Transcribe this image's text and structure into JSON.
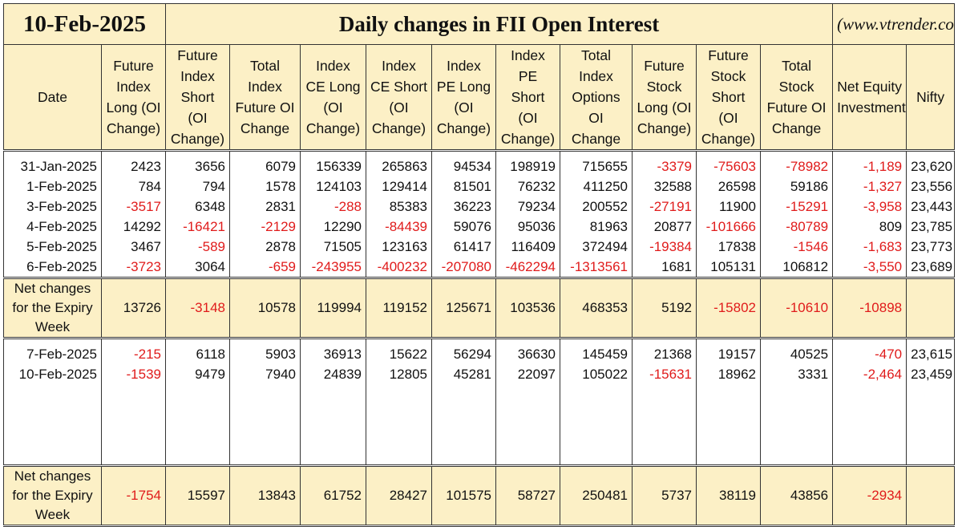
{
  "header": {
    "date": "10-Feb-2025",
    "title": "Daily changes in FII Open Interest",
    "site": "(www.vtrender.com)"
  },
  "columns": [
    "Date",
    "Future Index Long (OI Change)",
    "Future Index Short (OI Change)",
    "Total Index Future OI Change",
    "Index CE Long (OI Change)",
    "Index CE Short (OI Change)",
    "Index PE Long (OI Change)",
    "Index PE Short (OI Change)",
    "Total Index Options OI Change",
    "Future Stock Long (OI Change)",
    "Future Stock Short (OI Change)",
    "Total Stock Future OI Change",
    "Net Equity Investment",
    "Nifty"
  ],
  "week1": [
    [
      "31-Jan-2025",
      "2423",
      "3656",
      "6079",
      "156339",
      "265863",
      "94534",
      "198919",
      "715655",
      "-3379",
      "-75603",
      "-78982",
      "-1,189",
      "23,620"
    ],
    [
      "1-Feb-2025",
      "784",
      "794",
      "1578",
      "124103",
      "129414",
      "81501",
      "76232",
      "411250",
      "32588",
      "26598",
      "59186",
      "-1,327",
      "23,556"
    ],
    [
      "3-Feb-2025",
      "-3517",
      "6348",
      "2831",
      "-288",
      "85383",
      "36223",
      "79234",
      "200552",
      "-27191",
      "11900",
      "-15291",
      "-3,958",
      "23,443"
    ],
    [
      "4-Feb-2025",
      "14292",
      "-16421",
      "-2129",
      "12290",
      "-84439",
      "59076",
      "95036",
      "81963",
      "20877",
      "-101666",
      "-80789",
      "809",
      "23,785"
    ],
    [
      "5-Feb-2025",
      "3467",
      "-589",
      "2878",
      "71505",
      "123163",
      "61417",
      "116409",
      "372494",
      "-19384",
      "17838",
      "-1546",
      "-1,683",
      "23,773"
    ],
    [
      "6-Feb-2025",
      "-3723",
      "3064",
      "-659",
      "-243955",
      "-400232",
      "-207080",
      "-462294",
      "-1313561",
      "1681",
      "105131",
      "106812",
      "-3,550",
      "23,689"
    ]
  ],
  "net1": {
    "label": "Net changes for the Expiry Week",
    "values": [
      "13726",
      "-3148",
      "10578",
      "119994",
      "119152",
      "125671",
      "103536",
      "468353",
      "5192",
      "-15802",
      "-10610",
      "-10898",
      ""
    ]
  },
  "week2": [
    [
      "7-Feb-2025",
      "-215",
      "6118",
      "5903",
      "36913",
      "15622",
      "56294",
      "36630",
      "145459",
      "21368",
      "19157",
      "40525",
      "-470",
      "23,615"
    ],
    [
      "10-Feb-2025",
      "-1539",
      "9479",
      "7940",
      "24839",
      "12805",
      "45281",
      "22097",
      "105022",
      "-15631",
      "18962",
      "3331",
      "-2,464",
      "23,459"
    ]
  ],
  "net2": {
    "label": "Net changes for the Expiry Week",
    "values": [
      "-1754",
      "15597",
      "13843",
      "61752",
      "28427",
      "101575",
      "58727",
      "250481",
      "5737",
      "38119",
      "43856",
      "-2934",
      ""
    ]
  },
  "colors": {
    "header_bg": "#fcf0c6",
    "negative": "#e01b1b",
    "border": "#333333"
  }
}
